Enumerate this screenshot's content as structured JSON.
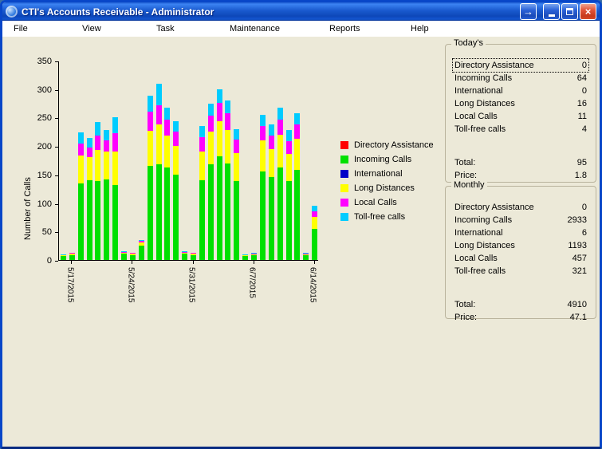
{
  "window": {
    "title": "CTI's Accounts Receivable - Administrator",
    "controls": {
      "extra_glyph": "→",
      "close_glyph": "×"
    }
  },
  "menu": {
    "items": [
      "File",
      "View",
      "Task",
      "Maintenance",
      "Reports",
      "Help"
    ]
  },
  "panels": [
    {
      "title": "Today's",
      "rows": [
        {
          "label": "Directory Assistance",
          "value": "0"
        },
        {
          "label": "Incoming Calls",
          "value": "64"
        },
        {
          "label": "International",
          "value": "0"
        },
        {
          "label": "Long Distances",
          "value": "16"
        },
        {
          "label": "Local Calls",
          "value": "11"
        },
        {
          "label": "Toll-free calls",
          "value": "4"
        }
      ],
      "total_label": "Total:",
      "total_value": "95",
      "price_label": "Price:",
      "price_value": "1.8"
    },
    {
      "title": "Monthly",
      "rows": [
        {
          "label": "Directory Assistance",
          "value": "0"
        },
        {
          "label": "Incoming Calls",
          "value": "2933"
        },
        {
          "label": "International",
          "value": "6"
        },
        {
          "label": "Long Distances",
          "value": "1193"
        },
        {
          "label": "Local Calls",
          "value": "457"
        },
        {
          "label": "Toll-free calls",
          "value": "321"
        }
      ],
      "total_label": "Total:",
      "total_value": "4910",
      "price_label": "Price:",
      "price_value": "47.1"
    }
  ],
  "chart_data": {
    "type": "bar",
    "stacked": true,
    "title": "",
    "xlabel": "",
    "ylabel": "Number of Calls",
    "ylim": [
      0,
      350
    ],
    "yticks": [
      0,
      50,
      100,
      150,
      200,
      250,
      300,
      350
    ],
    "grid": false,
    "legend_position": "right",
    "categories": [
      "5/16/2015",
      "5/17/2015",
      "5/18/2015",
      "5/19/2015",
      "5/20/2015",
      "5/21/2015",
      "5/22/2015",
      "5/23/2015",
      "5/24/2015",
      "5/25/2015",
      "5/26/2015",
      "5/27/2015",
      "5/28/2015",
      "5/29/2015",
      "5/30/2015",
      "5/31/2015",
      "6/1/2015",
      "6/2/2015",
      "6/3/2015",
      "6/4/2015",
      "6/5/2015",
      "6/6/2015",
      "6/7/2015",
      "6/8/2015",
      "6/9/2015",
      "6/10/2015",
      "6/11/2015",
      "6/12/2015",
      "6/13/2015",
      "6/14/2015"
    ],
    "tick_labels": [
      "5/17/2015",
      "5/24/2015",
      "5/31/2015",
      "6/7/2015",
      "6/14/2015"
    ],
    "tick_indices": [
      1,
      8,
      15,
      22,
      29
    ],
    "series": [
      {
        "name": "Directory Assistance",
        "color": "#ff0000",
        "values": [
          0,
          0,
          0,
          0,
          0,
          0,
          0,
          0,
          0,
          0,
          0,
          0,
          0,
          0,
          0,
          0,
          0,
          0,
          0,
          0,
          0,
          0,
          0,
          0,
          0,
          0,
          0,
          0,
          0,
          0
        ]
      },
      {
        "name": "Incoming Calls",
        "color": "#00e000",
        "values": [
          7,
          9,
          135,
          140,
          138,
          142,
          132,
          11,
          9,
          25,
          165,
          168,
          162,
          150,
          11,
          9,
          140,
          168,
          182,
          170,
          138,
          7,
          8,
          155,
          145,
          162,
          138,
          158,
          8,
          55
        ]
      },
      {
        "name": "International",
        "color": "#0000c8",
        "values": [
          0,
          0,
          0,
          0,
          0,
          0,
          0,
          0,
          0,
          0,
          0,
          0,
          0,
          0,
          0,
          0,
          0,
          0,
          0,
          0,
          0,
          0,
          0,
          0,
          0,
          0,
          0,
          0,
          0,
          0
        ]
      },
      {
        "name": "Long Distances",
        "color": "#ffff00",
        "values": [
          1,
          2,
          48,
          40,
          55,
          48,
          58,
          2,
          2,
          6,
          62,
          70,
          56,
          50,
          2,
          2,
          50,
          58,
          62,
          58,
          50,
          2,
          2,
          55,
          50,
          58,
          48,
          55,
          2,
          20
        ]
      },
      {
        "name": "Local Calls",
        "color": "#ff00ff",
        "values": [
          0,
          1,
          22,
          18,
          26,
          20,
          32,
          1,
          1,
          2,
          33,
          34,
          28,
          25,
          1,
          1,
          25,
          28,
          32,
          30,
          24,
          0,
          1,
          25,
          23,
          26,
          22,
          25,
          1,
          10
        ]
      },
      {
        "name": "Toll-free calls",
        "color": "#00ccff",
        "values": [
          2,
          1,
          19,
          16,
          23,
          18,
          28,
          1,
          1,
          2,
          28,
          38,
          22,
          18,
          1,
          1,
          20,
          21,
          24,
          22,
          18,
          1,
          1,
          20,
          20,
          22,
          20,
          20,
          1,
          10
        ]
      }
    ]
  }
}
